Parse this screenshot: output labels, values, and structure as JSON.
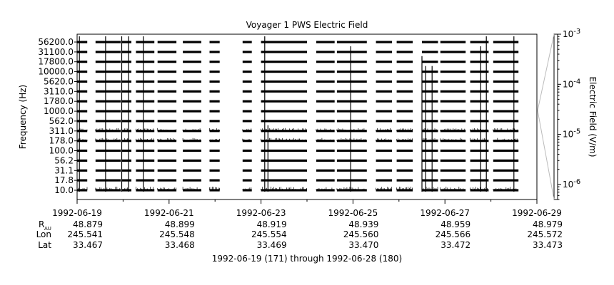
{
  "chart_data": {
    "type": "heatmap",
    "title": "Voyager 1 PWS Electric Field",
    "ylabel": "Frequency (Hz)",
    "colorbar_label": "Electric Field (V/m)",
    "frequency_channels": [
      "10.0",
      "17.8",
      "31.1",
      "56.2",
      "100.0",
      "178.0",
      "311.0",
      "562.0",
      "1000.0",
      "1780.0",
      "3110.0",
      "5620.0",
      "10000.0",
      "17800.0",
      "31100.0",
      "56200.0"
    ],
    "x_ticks": [
      "1992-06-19",
      "1992-06-21",
      "1992-06-23",
      "1992-06-25",
      "1992-06-27",
      "1992-06-29"
    ],
    "x_range": [
      "1992-06-19",
      "1992-06-29"
    ],
    "colorbar": {
      "scale": "log",
      "range": [
        5e-07,
        0.001
      ],
      "ticks": [
        {
          "value": 0.001,
          "base": "10",
          "exp": "-3"
        },
        {
          "value": 0.0001,
          "base": "10",
          "exp": "-4"
        },
        {
          "value": 1e-05,
          "base": "10",
          "exp": "-5"
        },
        {
          "value": 1e-06,
          "base": "10",
          "exp": "-6"
        }
      ]
    },
    "data_intervals_days": [
      [
        0.0,
        0.22
      ],
      [
        0.4,
        0.95
      ],
      [
        0.97,
        1.18
      ],
      [
        1.28,
        1.68
      ],
      [
        1.75,
        2.16
      ],
      [
        2.3,
        2.7
      ],
      [
        2.88,
        3.1
      ],
      [
        3.6,
        3.8
      ],
      [
        4.0,
        5.0
      ],
      [
        5.2,
        5.6
      ],
      [
        5.65,
        6.3
      ],
      [
        6.5,
        6.85
      ],
      [
        6.95,
        7.3
      ],
      [
        7.5,
        7.85
      ],
      [
        7.9,
        8.45
      ],
      [
        8.55,
        8.95
      ],
      [
        9.05,
        9.6
      ]
    ],
    "bursts": [
      {
        "day": 0.05,
        "top_channel": 15
      },
      {
        "day": 0.62,
        "top_channel": 15
      },
      {
        "day": 0.97,
        "top_channel": 15
      },
      {
        "day": 1.12,
        "top_channel": 15
      },
      {
        "day": 1.44,
        "top_channel": 15
      },
      {
        "day": 4.08,
        "top_channel": 15
      },
      {
        "day": 4.15,
        "top_channel": 6
      },
      {
        "day": 5.95,
        "top_channel": 14
      },
      {
        "day": 7.5,
        "top_channel": 13
      },
      {
        "day": 7.58,
        "top_channel": 12
      },
      {
        "day": 7.72,
        "top_channel": 12
      },
      {
        "day": 8.78,
        "top_channel": 14
      },
      {
        "day": 8.9,
        "top_channel": 15
      },
      {
        "day": 9.5,
        "top_channel": 15
      }
    ]
  },
  "ephemeris": {
    "labels": {
      "r_main": "R",
      "r_sub": "AU",
      "lon": "Lon",
      "lat": "Lat"
    },
    "columns": [
      {
        "r": "48.879",
        "lon": "245.541",
        "lat": "33.467"
      },
      {
        "r": "48.899",
        "lon": "245.548",
        "lat": "33.468"
      },
      {
        "r": "48.919",
        "lon": "245.554",
        "lat": "33.469"
      },
      {
        "r": "48.939",
        "lon": "245.560",
        "lat": "33.470"
      },
      {
        "r": "48.959",
        "lon": "245.566",
        "lat": "33.472"
      },
      {
        "r": "48.979",
        "lon": "245.572",
        "lat": "33.473"
      }
    ]
  },
  "footer": "1992-06-19 (171) through 1992-06-28 (180)"
}
